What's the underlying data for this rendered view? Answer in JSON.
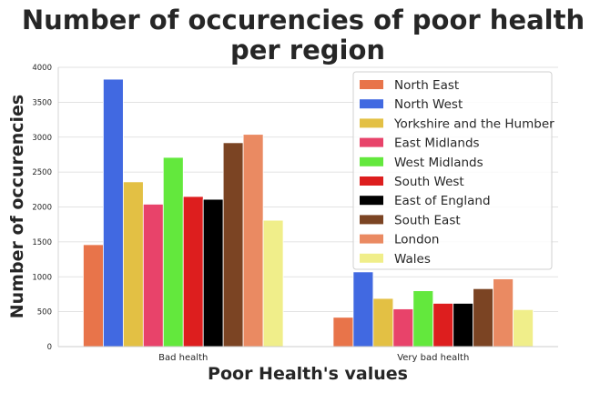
{
  "chart_data": {
    "type": "bar",
    "title_lines": [
      "Number of occurencies of poor health",
      "per region"
    ],
    "xlabel": "Poor Health's values",
    "ylabel": "Number of occurencies",
    "categories": [
      "Bad health",
      "Very bad health"
    ],
    "ylim": [
      0,
      4000
    ],
    "yticks": [
      0,
      500,
      1000,
      1500,
      2000,
      2500,
      3000,
      3500,
      4000
    ],
    "grid": "horizontal",
    "legend_position": "top-right",
    "series": [
      {
        "name": "North East",
        "color": "#e8744a",
        "values": [
          1460,
          420
        ]
      },
      {
        "name": "North West",
        "color": "#4169e1",
        "values": [
          3830,
          1070
        ]
      },
      {
        "name": "Yorkshire and the Humber",
        "color": "#e3c044",
        "values": [
          2360,
          690
        ]
      },
      {
        "name": "East Midlands",
        "color": "#e8436a",
        "values": [
          2040,
          540
        ]
      },
      {
        "name": "West Midlands",
        "color": "#63e83d",
        "values": [
          2710,
          800
        ]
      },
      {
        "name": "South West",
        "color": "#dd1e1e",
        "values": [
          2150,
          620
        ]
      },
      {
        "name": "East of England",
        "color": "#000000",
        "values": [
          2110,
          620
        ]
      },
      {
        "name": "South East",
        "color": "#7b4423",
        "values": [
          2920,
          830
        ]
      },
      {
        "name": "London",
        "color": "#ea8a62",
        "values": [
          3040,
          970
        ]
      },
      {
        "name": "Wales",
        "color": "#f0ee8a",
        "values": [
          1810,
          530
        ]
      }
    ]
  }
}
